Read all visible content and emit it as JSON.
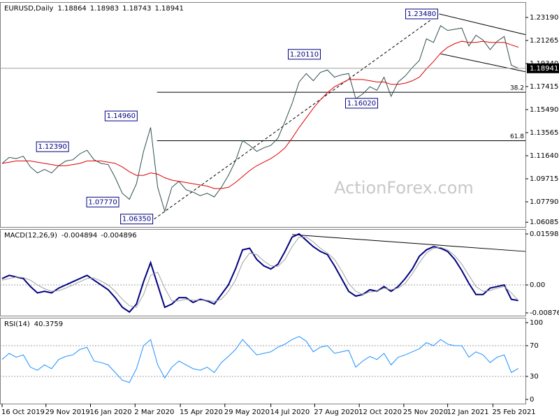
{
  "chart_data": [
    {
      "type": "line",
      "title": "EURUSD,Daily",
      "ohlc": [
        1.18864,
        1.18983,
        1.18743,
        1.18941
      ],
      "watermark": "ActionForex.com",
      "xlim": [
        0,
        74
      ],
      "ylim": [
        1.0569,
        1.2447
      ],
      "yticks": [
        {
          "value": 1.2319,
          "label": "1.23190"
        },
        {
          "value": 1.21265,
          "label": "1.21265"
        },
        {
          "value": 1.1934,
          "label": "1.19340"
        },
        {
          "value": 1.17415,
          "label": "1.17415"
        },
        {
          "value": 1.1549,
          "label": "1.15490"
        },
        {
          "value": 1.13565,
          "label": "1.13565"
        },
        {
          "value": 1.1164,
          "label": "1.11640"
        },
        {
          "value": 1.09715,
          "label": "1.09715"
        },
        {
          "value": 1.0779,
          "label": "1.07790"
        },
        {
          "value": 1.06085,
          "label": "1.06085"
        }
      ],
      "x": [
        0,
        1,
        2,
        3,
        4,
        5,
        6,
        7,
        8,
        9,
        10,
        11,
        12,
        13,
        14,
        15,
        16,
        17,
        18,
        19,
        20,
        21,
        22,
        23,
        24,
        25,
        26,
        27,
        28,
        29,
        30,
        31,
        32,
        33,
        34,
        35,
        36,
        37,
        38,
        39,
        40,
        41,
        42,
        43,
        44,
        45,
        46,
        47,
        48,
        49,
        50,
        51,
        52,
        53,
        54,
        55,
        56,
        57,
        58,
        59,
        60,
        61,
        62,
        63,
        64,
        65,
        66,
        67,
        68,
        69,
        70,
        71,
        72,
        73
      ],
      "series": [
        {
          "color": "#2f4f4f",
          "values": [
            1.11,
            1.115,
            1.114,
            1.116,
            1.107,
            1.102,
            1.105,
            1.102,
            1.108,
            1.112,
            1.113,
            1.118,
            1.121,
            1.113,
            1.11,
            1.109,
            1.098,
            1.085,
            1.08,
            1.093,
            1.12,
            1.14,
            1.09,
            1.07,
            1.09,
            1.095,
            1.088,
            1.086,
            1.083,
            1.085,
            1.082,
            1.09,
            1.1,
            1.112,
            1.129,
            1.125,
            1.12,
            1.123,
            1.125,
            1.131,
            1.145,
            1.16,
            1.178,
            1.185,
            1.179,
            1.186,
            1.188,
            1.182,
            1.184,
            1.185,
            1.164,
            1.168,
            1.174,
            1.171,
            1.182,
            1.166,
            1.178,
            1.183,
            1.19,
            1.196,
            1.214,
            1.211,
            1.225,
            1.221,
            1.222,
            1.223,
            1.208,
            1.217,
            1.213,
            1.205,
            1.212,
            1.216,
            1.192,
            1.18941
          ]
        },
        {
          "color": "#e00000",
          "values": [
            1.11,
            1.111,
            1.112,
            1.112,
            1.112,
            1.111,
            1.11,
            1.109,
            1.108,
            1.108,
            1.109,
            1.11,
            1.112,
            1.112,
            1.112,
            1.111,
            1.11,
            1.107,
            1.103,
            1.1,
            1.1,
            1.102,
            1.101,
            1.098,
            1.096,
            1.095,
            1.094,
            1.093,
            1.092,
            1.091,
            1.089,
            1.089,
            1.09,
            1.094,
            1.099,
            1.104,
            1.108,
            1.111,
            1.114,
            1.118,
            1.123,
            1.131,
            1.14,
            1.148,
            1.156,
            1.163,
            1.169,
            1.174,
            1.177,
            1.18,
            1.18,
            1.18,
            1.179,
            1.178,
            1.178,
            1.176,
            1.176,
            1.177,
            1.179,
            1.182,
            1.189,
            1.195,
            1.202,
            1.207,
            1.21,
            1.212,
            1.211,
            1.211,
            1.212,
            1.211,
            1.211,
            1.211,
            1.209,
            1.207
          ]
        }
      ],
      "annotations": [
        {
          "label": "1.23480",
          "value": 1.2348,
          "x": 61.8
        },
        {
          "label": "1.20110",
          "value": 1.2011,
          "x": 45.2
        },
        {
          "label": "1.14960",
          "value": 1.1496,
          "x": 19.3
        },
        {
          "label": "1.12390",
          "value": 1.1239,
          "x": 9.6
        },
        {
          "label": "1.07770",
          "value": 1.0777,
          "x": 16.7
        },
        {
          "label": "1.06350",
          "value": 1.0635,
          "x": 21.5
        },
        {
          "label": "1.16020",
          "value": 1.1602,
          "x": 53.3
        }
      ],
      "fib_levels": [
        {
          "ratio": 38.2,
          "price": 1.1694,
          "x": 21.9
        },
        {
          "ratio": 61.8,
          "price": 1.1289,
          "x": 21.9
        }
      ],
      "trendlines": [
        {
          "style": "dashed",
          "points": [
            [
              21.5,
              1.0635
            ],
            [
              61.8,
              1.2348
            ]
          ]
        },
        {
          "style": "solid",
          "points": [
            [
              61.8,
              1.2348
            ],
            [
              74,
              1.2175
            ]
          ]
        },
        {
          "style": "solid",
          "points": [
            [
              62,
              1.2015
            ],
            [
              74,
              1.1865
            ]
          ]
        }
      ]
    },
    {
      "type": "line",
      "title": "MACD(12,26,9)",
      "readings": [
        -0.004894,
        -0.004896
      ],
      "xlim": [
        0,
        74
      ],
      "ylim": [
        -0.00963,
        0.01752
      ],
      "yticks": [
        0.015983,
        {
          "value": 0,
          "label": "0.00"
        },
        -0.008762
      ],
      "levels": [
        0
      ],
      "series": [
        {
          "color": "#000080",
          "values": [
            0.002,
            0.003,
            0.0025,
            0.002,
            -0.0005,
            -0.0025,
            -0.002,
            -0.0025,
            -0.001,
            0.0,
            0.001,
            0.002,
            0.003,
            0.0015,
            0.0,
            -0.0015,
            -0.004,
            -0.007,
            -0.0085,
            -0.006,
            0.001,
            0.007,
            0.0,
            -0.007,
            -0.006,
            -0.004,
            -0.004,
            -0.0055,
            -0.0045,
            -0.005,
            -0.006,
            -0.003,
            0.0,
            0.005,
            0.011,
            0.0115,
            0.008,
            0.006,
            0.005,
            0.0065,
            0.0105,
            0.015,
            0.016,
            0.014,
            0.012,
            0.0105,
            0.0095,
            0.006,
            0.002,
            -0.002,
            -0.0035,
            -0.003,
            -0.0015,
            -0.002,
            -0.0005,
            -0.002,
            -0.0005,
            0.002,
            0.005,
            0.009,
            0.011,
            0.012,
            0.0115,
            0.0105,
            0.008,
            0.0045,
            0.0005,
            -0.003,
            -0.003,
            -0.001,
            -0.0005,
            0.0,
            -0.0045,
            -0.004894
          ]
        },
        {
          "color": "#a0a0a0",
          "values": [
            0.0015,
            0.002,
            0.0025,
            0.0023,
            0.0015,
            0.0,
            -0.0012,
            -0.002,
            -0.0018,
            -0.001,
            0.0,
            0.001,
            0.002,
            0.0022,
            0.0012,
            0.0,
            -0.002,
            -0.0045,
            -0.0065,
            -0.007,
            -0.003,
            0.003,
            0.004,
            -0.001,
            -0.005,
            -0.005,
            -0.0045,
            -0.0048,
            -0.0048,
            -0.0048,
            -0.0052,
            -0.0045,
            -0.002,
            0.0015,
            0.007,
            0.01,
            0.0095,
            0.0075,
            0.006,
            0.0058,
            0.008,
            0.012,
            0.015,
            0.015,
            0.0135,
            0.0115,
            0.01,
            0.008,
            0.0045,
            0.0005,
            -0.002,
            -0.003,
            -0.0022,
            -0.002,
            -0.001,
            -0.0015,
            -0.001,
            0.0005,
            0.0035,
            0.007,
            0.01,
            0.0115,
            0.0118,
            0.011,
            0.0092,
            0.0065,
            0.003,
            -0.0005,
            -0.002,
            -0.0018,
            -0.001,
            -0.0005,
            -0.0025,
            -0.004896
          ]
        }
      ],
      "trendlines": [
        {
          "style": "solid",
          "points": [
            [
              41,
              0.0158
            ],
            [
              74,
              0.0105
            ]
          ]
        }
      ]
    },
    {
      "type": "line",
      "title": "RSI(14)",
      "readings": [
        40.3759
      ],
      "xlim": [
        0,
        74
      ],
      "ylim": [
        -5.5,
        106.4
      ],
      "yticks": [
        100,
        70,
        30,
        0
      ],
      "levels": [
        70,
        30
      ],
      "xticks": [
        {
          "value": 0,
          "label": "16 Oct 2019"
        },
        {
          "value": 6.2,
          "label": "29 Nov 2019"
        },
        {
          "value": 12.5,
          "label": "16 Jan 2020"
        },
        {
          "value": 18.8,
          "label": "2 Mar 2020"
        },
        {
          "value": 25.2,
          "label": "15 Apr 2020"
        },
        {
          "value": 31.5,
          "label": "29 May 2020"
        },
        {
          "value": 38,
          "label": "14 Jul 2020"
        },
        {
          "value": 44.2,
          "label": "27 Aug 2020"
        },
        {
          "value": 50.5,
          "label": "12 Oct 2020"
        },
        {
          "value": 56.8,
          "label": "25 Nov 2020"
        },
        {
          "value": 63,
          "label": "12 Jan 2021"
        },
        {
          "value": 69.4,
          "label": "25 Feb 2021"
        }
      ],
      "series": [
        {
          "color": "#1e90ff",
          "values": [
            52,
            60,
            55,
            58,
            42,
            38,
            45,
            40,
            52,
            56,
            58,
            65,
            68,
            50,
            48,
            45,
            35,
            25,
            22,
            40,
            70,
            78,
            45,
            28,
            42,
            50,
            45,
            40,
            38,
            42,
            35,
            48,
            56,
            65,
            78,
            68,
            58,
            60,
            62,
            68,
            72,
            78,
            82,
            76,
            62,
            68,
            70,
            60,
            62,
            64,
            42,
            50,
            56,
            52,
            60,
            45,
            55,
            58,
            62,
            66,
            74,
            70,
            78,
            72,
            70,
            70,
            55,
            62,
            58,
            48,
            55,
            58,
            35,
            40.3759
          ]
        }
      ]
    }
  ]
}
